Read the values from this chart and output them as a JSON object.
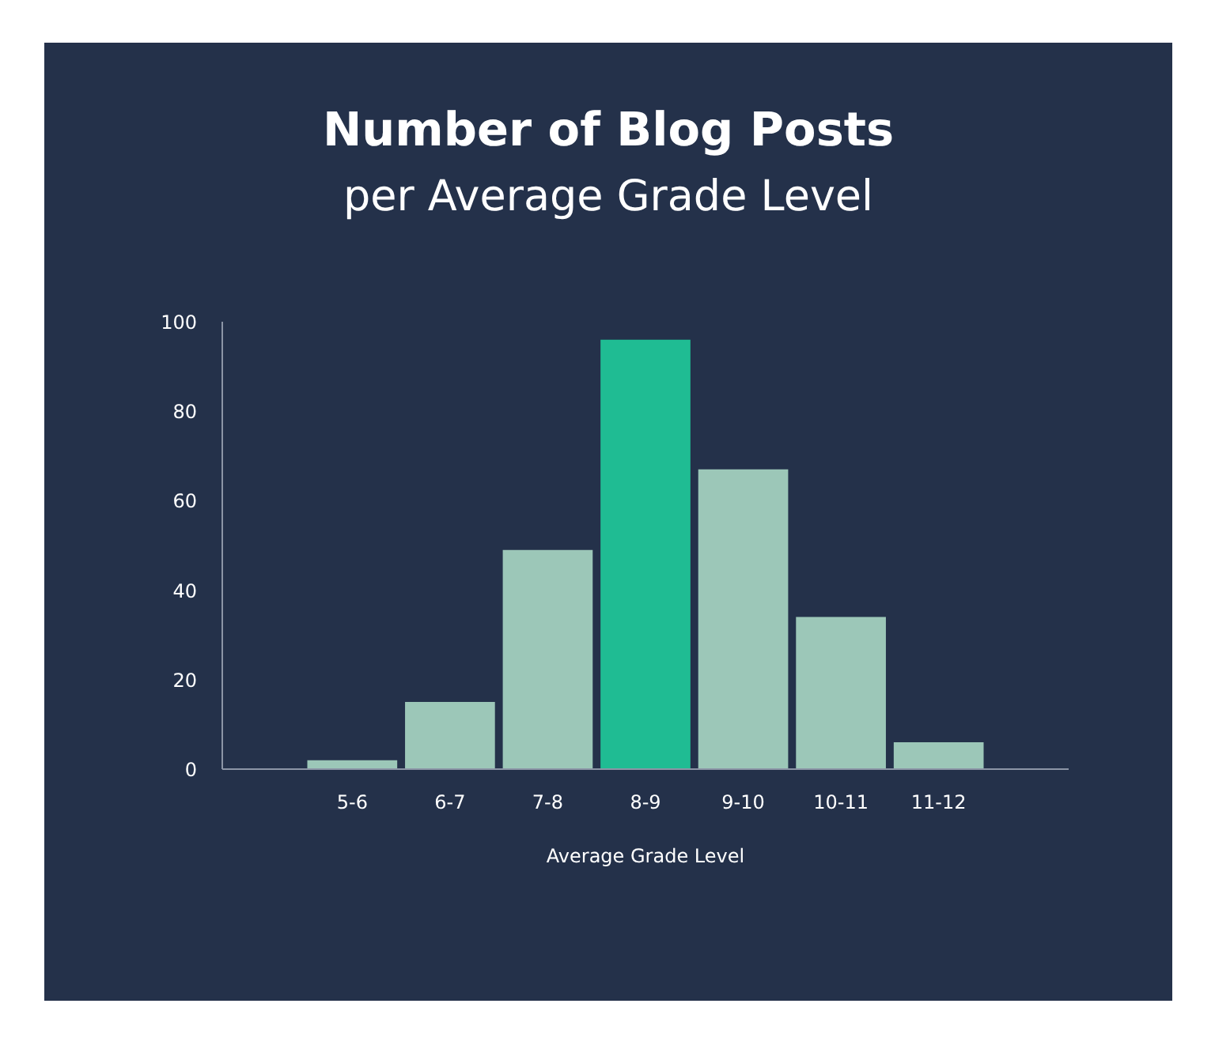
{
  "chart_data": {
    "type": "bar",
    "title": "Number of Blog Posts",
    "subtitle": "per Average Grade Level",
    "xlabel": "Average Grade Level",
    "categories": [
      "5-6",
      "6-7",
      "7-8",
      "8-9",
      "9-10",
      "10-11",
      "11-12"
    ],
    "values": [
      2,
      15,
      49,
      96,
      67,
      34,
      6
    ],
    "colors": [
      "#9cc7b8",
      "#9cc7b8",
      "#9cc7b8",
      "#1fbc93",
      "#9cc7b8",
      "#9cc7b8",
      "#9cc7b8"
    ],
    "ylim": [
      0,
      100
    ],
    "yticks": [
      0,
      20,
      40,
      60,
      80,
      100
    ]
  }
}
